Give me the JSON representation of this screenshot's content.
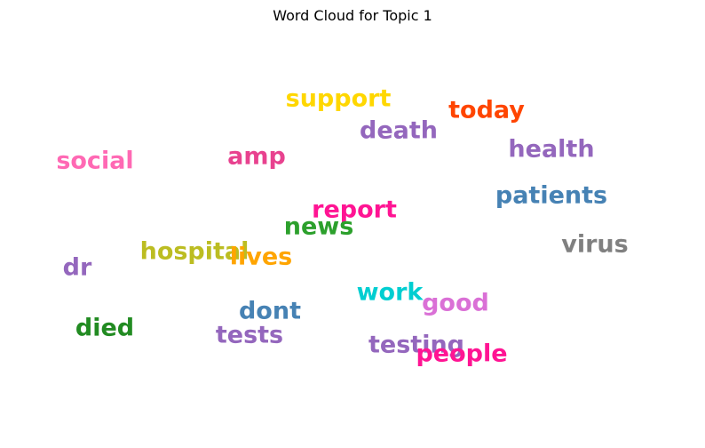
{
  "chart_data": {
    "type": "wordcloud",
    "title": "Word Cloud for Topic 1",
    "words": [
      {
        "text": "support",
        "color": "#FFD700"
      },
      {
        "text": "today",
        "color": "#FF4500"
      },
      {
        "text": "death",
        "color": "#9467BD"
      },
      {
        "text": "health",
        "color": "#9467BD"
      },
      {
        "text": "social",
        "color": "#FF69B4"
      },
      {
        "text": "amp",
        "color": "#E8428F"
      },
      {
        "text": "patients",
        "color": "#4682B4"
      },
      {
        "text": "report",
        "color": "#FF1493"
      },
      {
        "text": "news",
        "color": "#2CA02C"
      },
      {
        "text": "virus",
        "color": "#808080"
      },
      {
        "text": "hospital",
        "color": "#BCBD22"
      },
      {
        "text": "lives",
        "color": "#FFA500"
      },
      {
        "text": "dr",
        "color": "#9467BD"
      },
      {
        "text": "work",
        "color": "#00CED1"
      },
      {
        "text": "good",
        "color": "#DA70D6"
      },
      {
        "text": "dont",
        "color": "#4682B4"
      },
      {
        "text": "died",
        "color": "#228B22"
      },
      {
        "text": "tests",
        "color": "#9467BD"
      },
      {
        "text": "testing",
        "color": "#9467BD"
      },
      {
        "text": "people",
        "color": "#FF1493"
      }
    ]
  }
}
